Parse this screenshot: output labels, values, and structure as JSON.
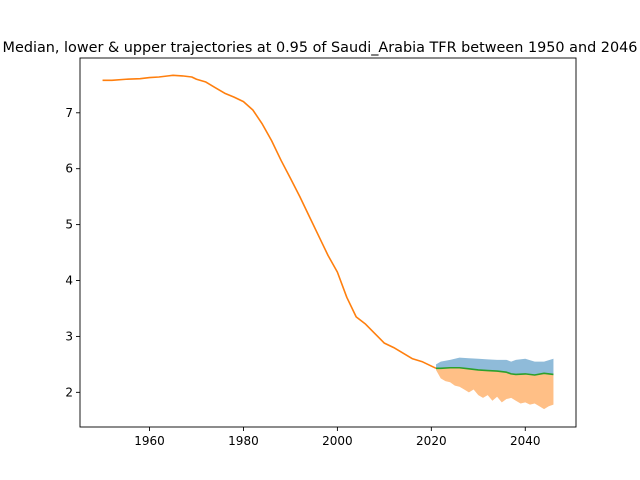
{
  "chart_data": {
    "type": "line",
    "title": "Median, lower & upper trajectories at 0.95 of Saudi_Arabia TFR between 1950 and 2046",
    "xlabel": "",
    "ylabel": "",
    "xlim": [
      1945.2,
      2050.8
    ],
    "ylim": [
      1.38,
      7.98
    ],
    "xticks": [
      1960,
      1980,
      2000,
      2020,
      2040
    ],
    "yticks": [
      2,
      3,
      4,
      5,
      6,
      7
    ],
    "grid": false,
    "colors": {
      "history": "#ff7f0e",
      "median": "#2ca02c",
      "upper_band": "#1f77b4",
      "lower_band": "#ff7f0e"
    },
    "series": [
      {
        "x": [
          1950,
          1952,
          1955,
          1958,
          1960,
          1962,
          1964,
          1965,
          1967,
          1969,
          1970,
          1972,
          1974,
          1976,
          1978,
          1980,
          1982,
          1984,
          1986,
          1988,
          1990,
          1992,
          1994,
          1996,
          1998,
          2000,
          2002,
          2004,
          2006,
          2008,
          2010,
          2012,
          2014,
          2016,
          2018,
          2020,
          2021
        ],
        "values": [
          7.58,
          7.58,
          7.6,
          7.61,
          7.63,
          7.64,
          7.66,
          7.67,
          7.66,
          7.64,
          7.6,
          7.55,
          7.45,
          7.35,
          7.28,
          7.2,
          7.05,
          6.8,
          6.5,
          6.15,
          5.83,
          5.5,
          5.15,
          4.8,
          4.45,
          4.15,
          3.7,
          3.35,
          3.22,
          3.05,
          2.88,
          2.8,
          2.7,
          2.6,
          2.55,
          2.47,
          2.43
        ]
      },
      {
        "x": [
          2021,
          2022,
          2024,
          2026,
          2028,
          2030,
          2032,
          2034,
          2036,
          2037,
          2038,
          2040,
          2042,
          2044,
          2046
        ],
        "values": [
          2.43,
          2.43,
          2.44,
          2.44,
          2.42,
          2.4,
          2.39,
          2.38,
          2.36,
          2.33,
          2.32,
          2.33,
          2.31,
          2.34,
          2.32
        ]
      },
      {
        "x": [
          2021,
          2022,
          2024,
          2026,
          2028,
          2030,
          2032,
          2034,
          2036,
          2037,
          2038,
          2040,
          2042,
          2044,
          2046
        ],
        "values": [
          2.5,
          2.55,
          2.58,
          2.62,
          2.61,
          2.6,
          2.59,
          2.58,
          2.58,
          2.55,
          2.58,
          2.6,
          2.55,
          2.55,
          2.6
        ]
      },
      {
        "x": [
          2021,
          2022,
          2023,
          2024,
          2025,
          2026,
          2027,
          2028,
          2029,
          2030,
          2031,
          2032,
          2033,
          2034,
          2035,
          2036,
          2037,
          2038,
          2039,
          2040,
          2041,
          2042,
          2043,
          2044,
          2045,
          2046
        ],
        "values": [
          2.4,
          2.25,
          2.2,
          2.18,
          2.12,
          2.1,
          2.05,
          2.0,
          2.05,
          1.95,
          1.9,
          1.95,
          1.85,
          1.92,
          1.82,
          1.88,
          1.9,
          1.85,
          1.8,
          1.82,
          1.78,
          1.8,
          1.75,
          1.7,
          1.75,
          1.78
        ]
      }
    ]
  }
}
